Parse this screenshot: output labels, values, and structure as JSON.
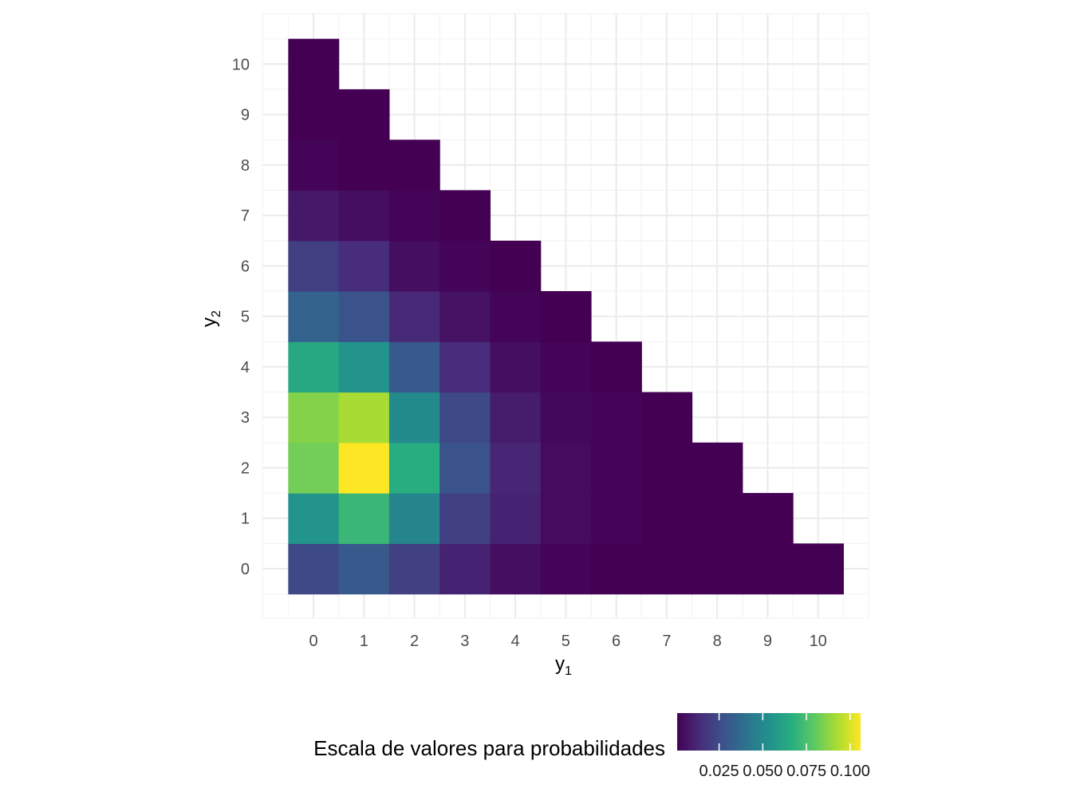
{
  "chart_data": {
    "type": "heatmap",
    "title": "",
    "xlabel": "y",
    "xlabel_sub": "1",
    "ylabel": "y",
    "ylabel_sub": "2",
    "x_ticks": [
      "0",
      "1",
      "2",
      "3",
      "4",
      "5",
      "6",
      "7",
      "8",
      "9",
      "10"
    ],
    "y_ticks": [
      "0",
      "1",
      "2",
      "3",
      "4",
      "5",
      "6",
      "7",
      "8",
      "9",
      "10"
    ],
    "grid": true,
    "legend": {
      "title": "Escala de valores para probabilidades",
      "position": "bottom",
      "colormap": "viridis",
      "range": [
        0.001,
        0.106
      ],
      "ticks": [
        0.025,
        0.05,
        0.075,
        0.1
      ],
      "tick_labels": [
        "0.025",
        "0.050",
        "0.075",
        "0.100"
      ]
    },
    "cells_note": "rows are y1 = 0..10; each row lists values for y2 = 0 .. 10 - y1",
    "rows": [
      [
        0.024,
        0.055,
        0.083,
        0.086,
        0.064,
        0.034,
        0.02,
        0.008,
        0.002,
        0.001,
        0.001
      ],
      [
        0.03,
        0.071,
        0.106,
        0.092,
        0.055,
        0.028,
        0.014,
        0.005,
        0.001,
        0.001
      ],
      [
        0.021,
        0.048,
        0.066,
        0.051,
        0.03,
        0.013,
        0.005,
        0.002,
        0.001
      ],
      [
        0.011,
        0.021,
        0.028,
        0.024,
        0.014,
        0.006,
        0.002,
        0.001
      ],
      [
        0.005,
        0.011,
        0.012,
        0.009,
        0.005,
        0.002,
        0.001
      ],
      [
        0.002,
        0.004,
        0.004,
        0.003,
        0.002,
        0.001
      ],
      [
        0.001,
        0.002,
        0.002,
        0.002,
        0.001
      ],
      [
        0.001,
        0.001,
        0.001,
        0.001
      ],
      [
        0.001,
        0.001,
        0.001
      ],
      [
        0.001,
        0.001
      ],
      [
        0.001
      ]
    ]
  }
}
